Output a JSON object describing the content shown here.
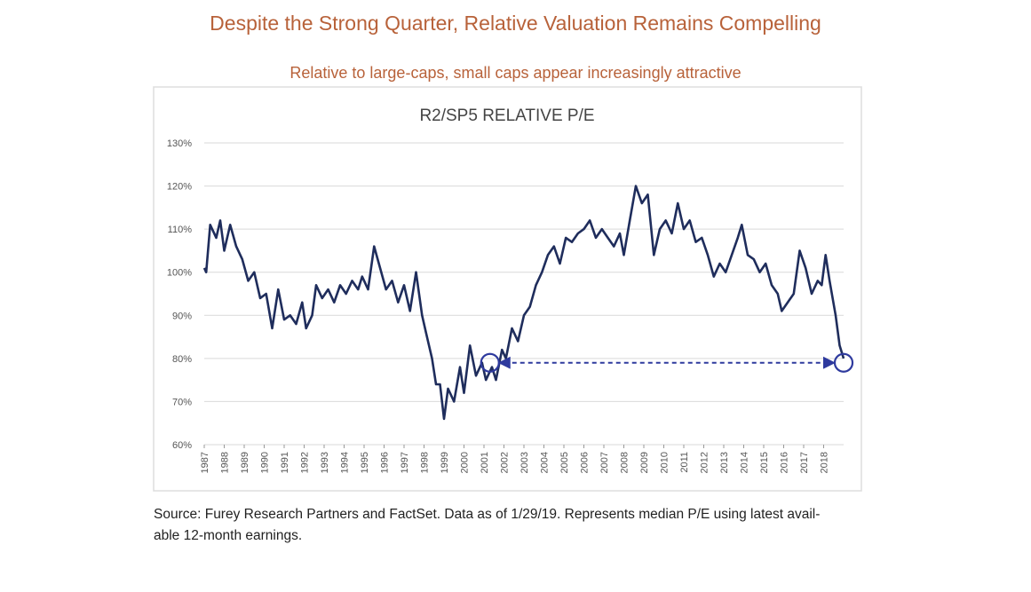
{
  "header": {
    "title": "Despite the Strong Quarter, Relative Valuation Remains Compelling",
    "subtitle": "Relative to large-caps, small caps appear increasingly attractive"
  },
  "footer": {
    "source": [
      "Source: Furey Research Partners and FactSet.  Data as of 1/29/19.  Represents median P/E using latest avail-",
      "able 12-month earnings."
    ]
  },
  "chart_data": {
    "type": "line",
    "title": "R2/SP5 RELATIVE P/E",
    "x": [
      1987.0,
      1987.1,
      1987.3,
      1987.6,
      1987.8,
      1988.0,
      1988.3,
      1988.6,
      1988.9,
      1989.2,
      1989.5,
      1989.8,
      1990.1,
      1990.4,
      1990.7,
      1991.0,
      1991.3,
      1991.6,
      1991.9,
      1992.1,
      1992.4,
      1992.6,
      1992.9,
      1993.2,
      1993.5,
      1993.8,
      1994.1,
      1994.4,
      1994.7,
      1994.9,
      1995.2,
      1995.5,
      1995.8,
      1996.1,
      1996.4,
      1996.7,
      1997.0,
      1997.3,
      1997.6,
      1997.9,
      1998.1,
      1998.4,
      1998.6,
      1998.8,
      1999.0,
      1999.2,
      1999.5,
      1999.8,
      2000.0,
      2000.3,
      2000.6,
      2000.9,
      2001.1,
      2001.4,
      2001.6,
      2001.9,
      2002.1,
      2002.4,
      2002.7,
      2003.0,
      2003.3,
      2003.6,
      2003.9,
      2004.2,
      2004.5,
      2004.8,
      2005.1,
      2005.4,
      2005.7,
      2006.0,
      2006.3,
      2006.6,
      2006.9,
      2007.2,
      2007.5,
      2007.8,
      2008.0,
      2008.3,
      2008.6,
      2008.9,
      2009.2,
      2009.5,
      2009.8,
      2010.1,
      2010.4,
      2010.7,
      2011.0,
      2011.3,
      2011.6,
      2011.9,
      2012.2,
      2012.5,
      2012.8,
      2013.1,
      2013.4,
      2013.7,
      2013.9,
      2014.2,
      2014.5,
      2014.8,
      2015.1,
      2015.4,
      2015.7,
      2015.9,
      2016.2,
      2016.5,
      2016.8,
      2017.1,
      2017.4,
      2017.7,
      2017.9,
      2018.1,
      2018.3,
      2018.6,
      2018.8,
      2019.0
    ],
    "series": [
      {
        "color": "#1f2d5c",
        "values": [
          101,
          100,
          111,
          108,
          112,
          105,
          111,
          106,
          103,
          98,
          100,
          94,
          95,
          87,
          96,
          89,
          90,
          88,
          93,
          87,
          90,
          97,
          94,
          96,
          93,
          97,
          95,
          98,
          96,
          99,
          96,
          106,
          101,
          96,
          98,
          93,
          97,
          91,
          100,
          90,
          86,
          80,
          74,
          74,
          66,
          73,
          70,
          78,
          72,
          83,
          76,
          79,
          75,
          78,
          75,
          82,
          80,
          87,
          84,
          90,
          92,
          97,
          100,
          104,
          106,
          102,
          108,
          107,
          109,
          110,
          112,
          108,
          110,
          108,
          106,
          109,
          104,
          112,
          120,
          116,
          118,
          104,
          110,
          112,
          109,
          116,
          110,
          112,
          107,
          108,
          104,
          99,
          102,
          100,
          104,
          108,
          111,
          104,
          103,
          100,
          102,
          97,
          95,
          91,
          93,
          95,
          105,
          101,
          95,
          98,
          97,
          104,
          98,
          90,
          83,
          80
        ]
      }
    ],
    "markers": {
      "color": "#2e3a9e",
      "x": [
        2001.3,
        2019.0
      ],
      "values": [
        79,
        79
      ]
    },
    "xlim": [
      1987,
      2019
    ],
    "ylim": [
      60,
      130
    ],
    "xticks": [
      1987,
      1988,
      1989,
      1990,
      1991,
      1992,
      1993,
      1994,
      1995,
      1996,
      1997,
      1998,
      1999,
      2000,
      2001,
      2002,
      2003,
      2004,
      2005,
      2006,
      2007,
      2008,
      2009,
      2010,
      2011,
      2012,
      2013,
      2014,
      2015,
      2016,
      2017,
      2018
    ],
    "yticks": [
      {
        "value": 60,
        "label": "60%"
      },
      {
        "value": 70,
        "label": "70%"
      },
      {
        "value": 80,
        "label": "80%"
      },
      {
        "value": 90,
        "label": "90%"
      },
      {
        "value": 100,
        "label": "100%"
      },
      {
        "value": 110,
        "label": "110%"
      },
      {
        "value": 120,
        "label": "120%"
      },
      {
        "value": 130,
        "label": "130%"
      }
    ],
    "grid": true
  }
}
